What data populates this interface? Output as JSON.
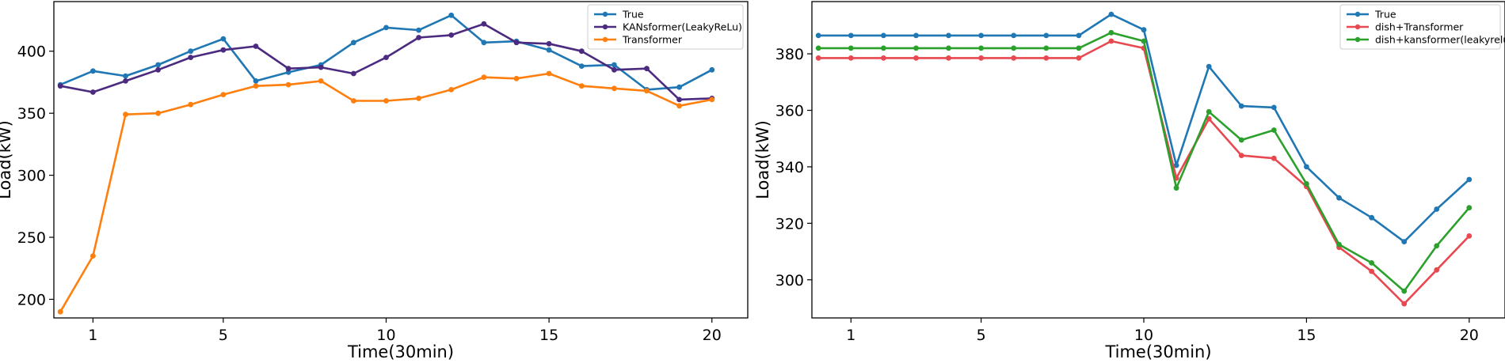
{
  "chart_data": [
    {
      "type": "line",
      "title": "",
      "xlabel": "Time(30min)",
      "ylabel": "Load(kW)",
      "xlim": [
        -0.2,
        21.1
      ],
      "ylim": [
        185,
        440
      ],
      "xticks": [
        1,
        5,
        10,
        15,
        20
      ],
      "yticks": [
        200,
        250,
        300,
        350,
        400
      ],
      "grid": false,
      "legend_position": "top-right",
      "x": [
        0,
        1,
        2,
        3,
        4,
        5,
        6,
        7,
        8,
        9,
        10,
        11,
        12,
        13,
        14,
        15,
        16,
        17,
        18,
        19,
        20
      ],
      "series": [
        {
          "name": "True",
          "color": "#1f77b4",
          "values": [
            373,
            384,
            380,
            389,
            400,
            410,
            376,
            383,
            389,
            407,
            419,
            417,
            429,
            407,
            408,
            401,
            388,
            389,
            369,
            371,
            385
          ]
        },
        {
          "name": "KANsformer(LeakyReLu)",
          "color": "#4b2a7f",
          "values": [
            372,
            367,
            376,
            385,
            395,
            401,
            404,
            386,
            387,
            382,
            395,
            411,
            413,
            422,
            407,
            406,
            400,
            385,
            386,
            361,
            362
          ]
        },
        {
          "name": "Transformer",
          "color": "#ff7f0e",
          "values": [
            190,
            235,
            349,
            350,
            357,
            365,
            372,
            373,
            376,
            360,
            360,
            362,
            369,
            379,
            378,
            382,
            372,
            370,
            368,
            356,
            361
          ]
        }
      ]
    },
    {
      "type": "line",
      "title": "",
      "xlabel": "Time(30min)",
      "ylabel": "Load(kW)",
      "xlim": [
        -0.2,
        21.1
      ],
      "ylim": [
        286.5,
        398.5
      ],
      "xticks": [
        1,
        5,
        10,
        15,
        20
      ],
      "yticks": [
        300,
        320,
        340,
        360,
        380
      ],
      "grid": false,
      "legend_position": "top-right",
      "x": [
        0,
        1,
        2,
        3,
        4,
        5,
        6,
        7,
        8,
        9,
        10,
        11,
        12,
        13,
        14,
        15,
        16,
        17,
        18,
        19,
        20
      ],
      "series": [
        {
          "name": "True",
          "color": "#1f77b4",
          "values": [
            386.5,
            386.5,
            386.5,
            386.5,
            386.5,
            386.5,
            386.5,
            386.5,
            386.5,
            394,
            388.5,
            340.5,
            375.5,
            361.5,
            361,
            340,
            329,
            322,
            313.5,
            325,
            335.5
          ]
        },
        {
          "name": "dish+Transformer",
          "color": "#e8484f",
          "values": [
            378.5,
            378.5,
            378.5,
            378.5,
            378.5,
            378.5,
            378.5,
            378.5,
            378.5,
            384.5,
            382,
            336,
            357,
            344,
            343,
            333,
            311.5,
            303,
            291.5,
            303.5,
            315.5
          ]
        },
        {
          "name": "dish+kansformer(leakyrelu)",
          "color": "#2ca02c",
          "values": [
            382,
            382,
            382,
            382,
            382,
            382,
            382,
            382,
            382,
            387.5,
            384.5,
            332.5,
            359.5,
            349.5,
            353,
            334,
            312.5,
            306,
            296,
            312,
            325.5
          ]
        }
      ]
    }
  ]
}
